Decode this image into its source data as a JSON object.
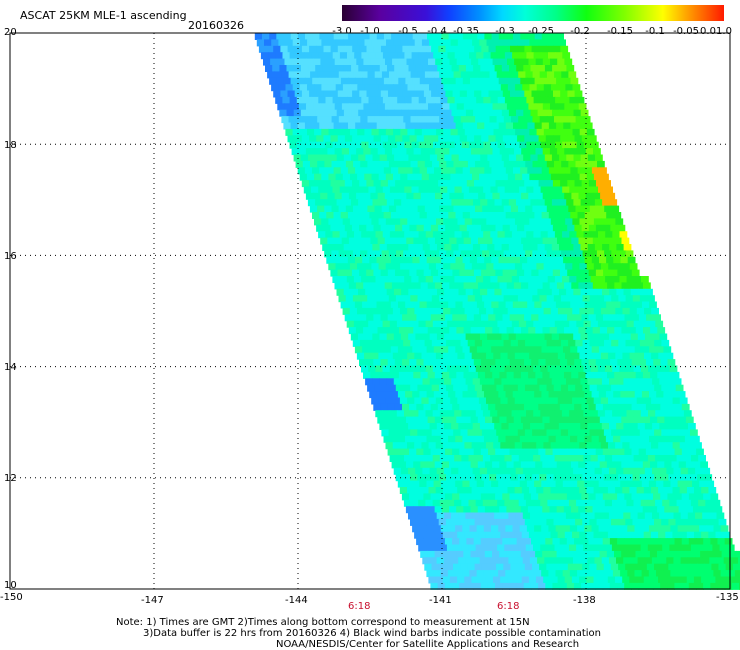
{
  "header": {
    "title": "ASCAT 25KM MLE-1 ascending",
    "date": "20160326"
  },
  "colorbar": {
    "labels": [
      "-3.0",
      "-1.0",
      "-0.5",
      "-0.4",
      "-0.35",
      "-0.3",
      "-0.25",
      "-0.2",
      "-0.15",
      "-0.1",
      "-0.05",
      "0.0",
      "1.0"
    ],
    "colors": [
      "#2a0033",
      "#5a00a0",
      "#3a10d8",
      "#1040ff",
      "#0090ff",
      "#00d8ff",
      "#00ffd8",
      "#00ff88",
      "#10ff10",
      "#80ff00",
      "#ffff00",
      "#ff8a00",
      "#ff1a00"
    ]
  },
  "axes": {
    "x_ticks": [
      "-150",
      "-147",
      "-144",
      "-141",
      "-138",
      "-135"
    ],
    "y_ticks": [
      "20",
      "18",
      "16",
      "14",
      "12",
      "10"
    ]
  },
  "times": [
    "6:18",
    "6:18"
  ],
  "notes": [
    "Note: 1) Times are GMT 2)Times along bottom correspond to measurement at 15N",
    "3)Data buffer is 22 hrs from 20160326 4) Black wind barbs indicate possible contamination",
    "NOAA/NESDIS/Center for Satellite Applications and Research"
  ],
  "chart_data": {
    "type": "heatmap",
    "title": "ASCAT 25KM MLE-1 ascending",
    "xlim": [
      -150,
      -135
    ],
    "ylim": [
      10,
      20
    ],
    "swath": {
      "left_edge_lon": [
        [
          20,
          -144.9
        ],
        [
          10,
          -141.2
        ]
      ],
      "right_edge_lon": [
        [
          20,
          -138.6
        ],
        [
          10,
          -134.6
        ]
      ]
    },
    "color_scale": "MLE",
    "value_range": [
      -3.0,
      1.0
    ],
    "dominant_range": [
      -0.3,
      -0.15
    ],
    "grid": true
  }
}
